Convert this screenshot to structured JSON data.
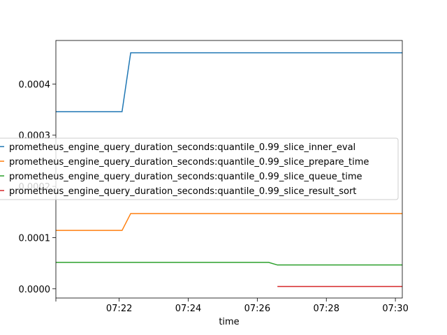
{
  "chart_data": {
    "type": "line",
    "xlabel": "time",
    "ylabel": "",
    "title": "",
    "x_ticks": [
      "07:22",
      "07:24",
      "07:26",
      "07:28",
      "07:30"
    ],
    "y_ticks": [
      "0.0000",
      "0.0001",
      "0.0002",
      "0.0003",
      "0.0004"
    ],
    "xlim": [
      "07:20:10",
      "07:30:12"
    ],
    "ylim": [
      -1.8e-05,
      0.000485
    ],
    "legend_position": "center-left",
    "series": [
      {
        "name": "prometheus_engine_query_duration_seconds:quantile_0.99_slice_inner_eval",
        "color": "#1f77b4",
        "x": [
          "07:20:10",
          "07:22:05",
          "07:22:20",
          "07:30:12"
        ],
        "y": [
          0.000346,
          0.000346,
          0.000461,
          0.000461
        ]
      },
      {
        "name": "prometheus_engine_query_duration_seconds:quantile_0.99_slice_prepare_time",
        "color": "#ff7f0e",
        "x": [
          "07:20:10",
          "07:22:05",
          "07:22:20",
          "07:30:12"
        ],
        "y": [
          0.000114,
          0.000114,
          0.000147,
          0.000147
        ]
      },
      {
        "name": "prometheus_engine_query_duration_seconds:quantile_0.99_slice_queue_time",
        "color": "#2ca02c",
        "x": [
          "07:20:10",
          "07:26:20",
          "07:26:35",
          "07:30:12"
        ],
        "y": [
          5.15e-05,
          5.15e-05,
          4.65e-05,
          4.65e-05
        ]
      },
      {
        "name": "prometheus_engine_query_duration_seconds:quantile_0.99_slice_result_sort",
        "color": "#d62728",
        "x": [
          "07:26:35",
          "07:30:12"
        ],
        "y": [
          4.5e-06,
          4.5e-06
        ]
      }
    ]
  }
}
